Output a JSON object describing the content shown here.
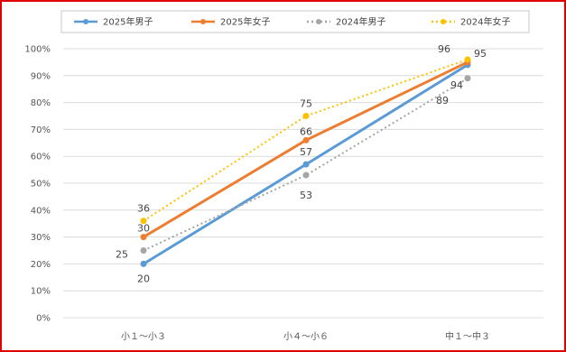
{
  "chart_data": {
    "type": "line",
    "categories": [
      "小１〜小３",
      "小４〜小６",
      "中１〜中３"
    ],
    "ylim": [
      0,
      100
    ],
    "yticks": [
      "0%",
      "10%",
      "20%",
      "30%",
      "40%",
      "50%",
      "60%",
      "70%",
      "80%",
      "90%",
      "100%"
    ],
    "grid": true,
    "legend_position": "top",
    "series": [
      {
        "name": "2025年男子",
        "values": [
          20,
          57,
          94
        ],
        "color": "#5b9bd5",
        "dash": "solid",
        "marker": "circle"
      },
      {
        "name": "2025年女子",
        "values": [
          30,
          66,
          95
        ],
        "color": "#ed7d31",
        "dash": "solid",
        "marker": "circle"
      },
      {
        "name": "2024年男子",
        "values": [
          25,
          53,
          89
        ],
        "color": "#a5a5a5",
        "dash": "dotted",
        "marker": "circle"
      },
      {
        "name": "2024年女子",
        "values": [
          36,
          75,
          96
        ],
        "color": "#ffc000",
        "dash": "dotted",
        "marker": "circle"
      }
    ]
  }
}
